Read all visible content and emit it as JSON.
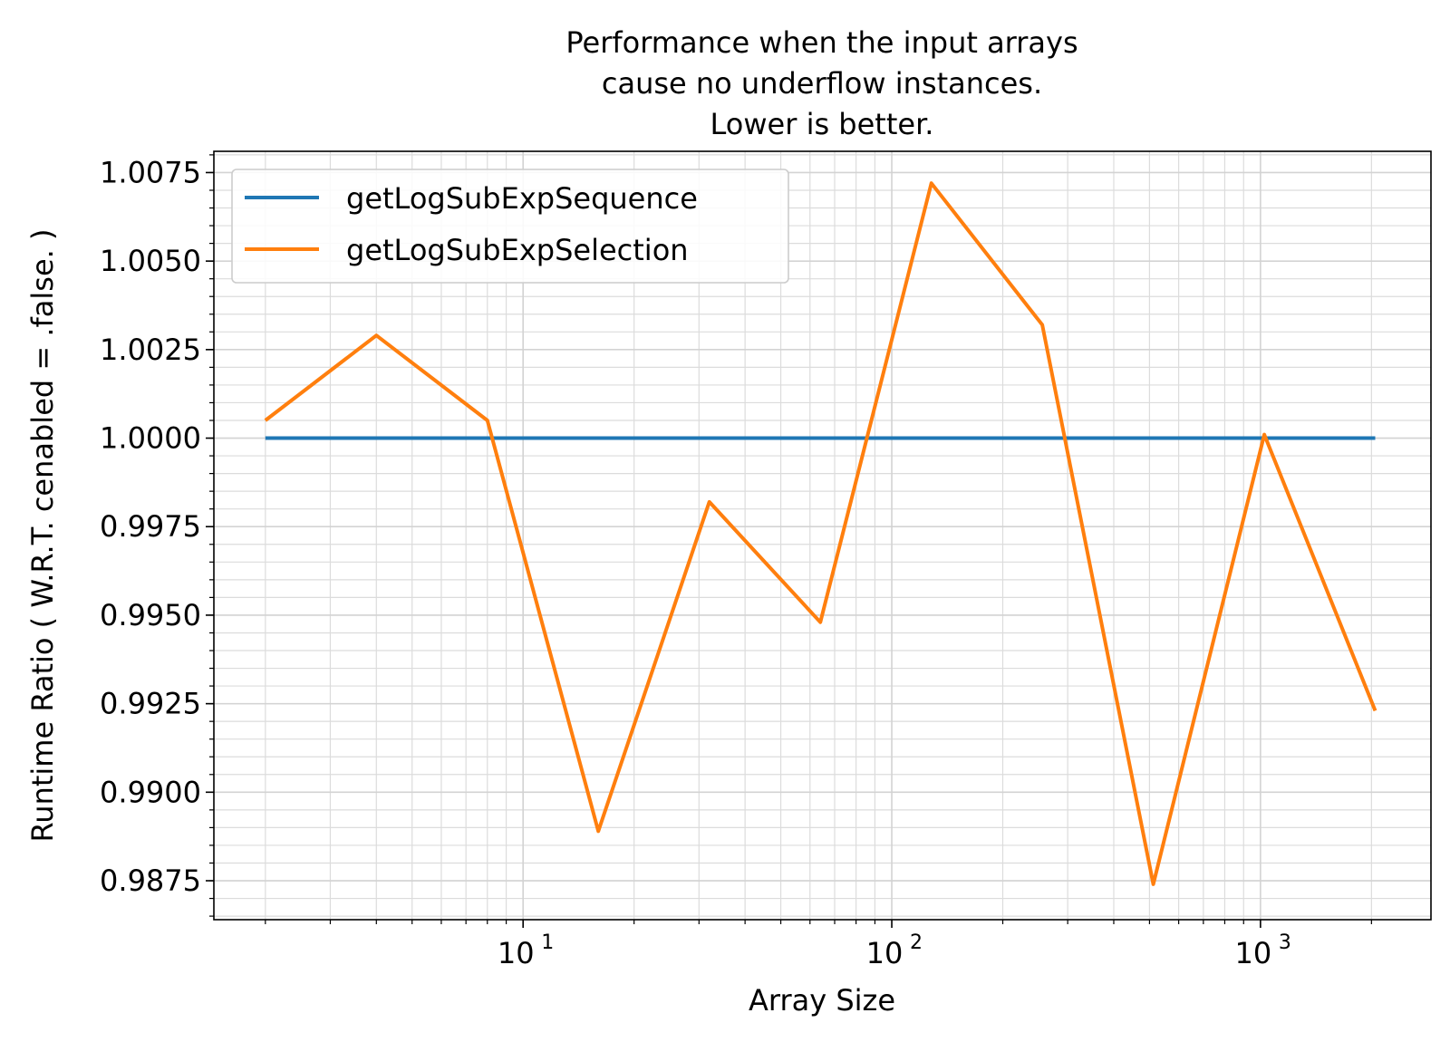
{
  "chart_data": {
    "type": "line",
    "title": [
      "Performance when the input arrays",
      "cause no underflow instances.",
      "Lower is better."
    ],
    "xlabel": "Array Size",
    "ylabel": "Runtime Ratio ( W.R.T. cenabled = .false. )",
    "xscale": "log",
    "xlim": [
      1.45,
      2900
    ],
    "ylim": [
      0.9864,
      1.0081
    ],
    "yticks": [
      0.9875,
      0.99,
      0.9925,
      0.995,
      0.9975,
      1.0,
      1.0025,
      1.005,
      1.0075
    ],
    "ytick_labels": [
      "0.9875",
      "0.9900",
      "0.9925",
      "0.9950",
      "0.9975",
      "1.0000",
      "1.0025",
      "1.0050",
      "1.0075"
    ],
    "xticks": [
      {
        "value": 10,
        "base": "10",
        "exp": "1"
      },
      {
        "value": 100,
        "base": "10",
        "exp": "2"
      },
      {
        "value": 1000,
        "base": "10",
        "exp": "3"
      }
    ],
    "grid": true,
    "legend_position": "top-left",
    "x": [
      2,
      4,
      8,
      16,
      32,
      64,
      128,
      256,
      512,
      1024,
      2048
    ],
    "series": [
      {
        "name": "getLogSubExpSequence",
        "color": "#1f77b4",
        "values": [
          1.0,
          1.0,
          1.0,
          1.0,
          1.0,
          1.0,
          1.0,
          1.0,
          1.0,
          1.0,
          1.0
        ]
      },
      {
        "name": "getLogSubExpSelection",
        "color": "#ff7f0e",
        "values": [
          1.0005,
          1.0029,
          1.0005,
          0.9889,
          0.9982,
          0.9948,
          1.0072,
          1.0032,
          0.9874,
          1.0001,
          0.9923
        ]
      }
    ]
  }
}
